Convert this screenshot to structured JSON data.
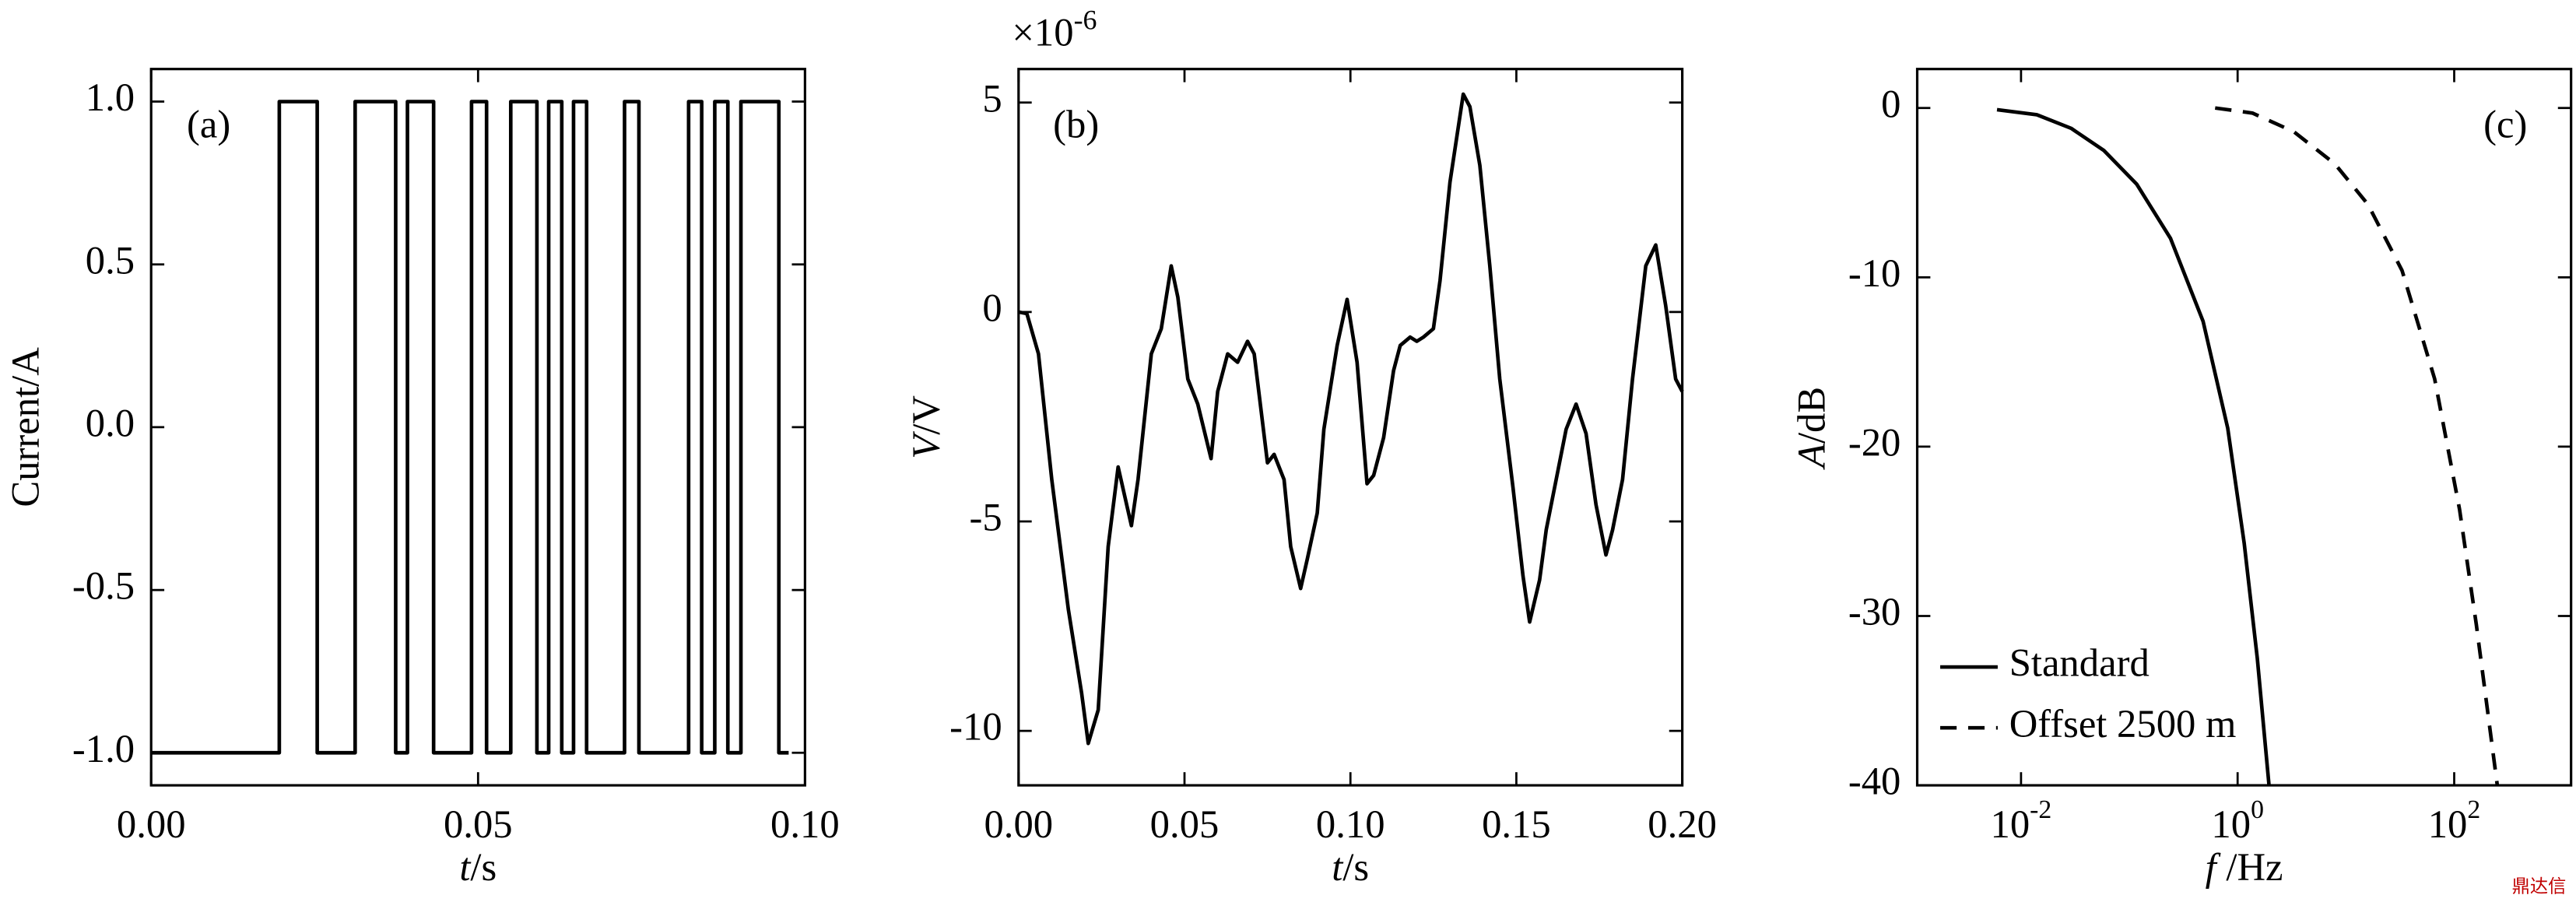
{
  "chart_data": [
    {
      "type": "line",
      "step": "post",
      "panel_label": "(a)",
      "ylabel": "Current/A",
      "xlabel": {
        "symbol": "t",
        "unit": "/s"
      },
      "color": "#000000",
      "x": [
        0,
        0.0196,
        0.0254,
        0.0312,
        0.0374,
        0.0392,
        0.0432,
        0.049,
        0.0513,
        0.055,
        0.059,
        0.0608,
        0.0628,
        0.0646,
        0.0666,
        0.0724,
        0.0746,
        0.0822,
        0.0842,
        0.0862,
        0.0882,
        0.0902,
        0.096,
        0.0975
      ],
      "values": [
        -1,
        1,
        -1,
        1,
        -1,
        1,
        -1,
        1,
        -1,
        1,
        -1,
        1,
        -1,
        1,
        -1,
        1,
        -1,
        1,
        -1,
        1,
        -1,
        1,
        -1,
        -1
      ],
      "xlim": [
        0,
        0.1
      ],
      "ylim": [
        -1.1,
        1.1
      ],
      "xticks": [
        {
          "value": 0,
          "label": "0.00"
        },
        {
          "value": 0.05,
          "label": "0.05"
        },
        {
          "value": 0.1,
          "label": "0.10"
        }
      ],
      "yticks": [
        {
          "value": -1,
          "label": "-1.0"
        },
        -0.5,
        {
          "value": 0,
          "label": "0.0"
        },
        0.5,
        {
          "value": 1,
          "label": "1.0"
        }
      ]
    },
    {
      "type": "line",
      "panel_label": "(b)",
      "multiplier": {
        "base": "×10",
        "exponent": "-6"
      },
      "ylabel": {
        "symbol": "V",
        "unit": "/V"
      },
      "xlabel": {
        "symbol": "t",
        "unit": "/s"
      },
      "color": "#000000",
      "x": [
        0,
        0.0025,
        0.006,
        0.01,
        0.015,
        0.019,
        0.021,
        0.024,
        0.027,
        0.03,
        0.034,
        0.036,
        0.04,
        0.043,
        0.046,
        0.048,
        0.051,
        0.054,
        0.058,
        0.06,
        0.063,
        0.066,
        0.069,
        0.071,
        0.075,
        0.077,
        0.08,
        0.082,
        0.085,
        0.087,
        0.09,
        0.092,
        0.096,
        0.099,
        0.102,
        0.105,
        0.107,
        0.11,
        0.113,
        0.115,
        0.118,
        0.12,
        0.122,
        0.125,
        0.127,
        0.13,
        0.134,
        0.136,
        0.139,
        0.142,
        0.145,
        0.149,
        0.152,
        0.154,
        0.157,
        0.159,
        0.162,
        0.165,
        0.168,
        0.171,
        0.174,
        0.177,
        0.179,
        0.182,
        0.185,
        0.189,
        0.192,
        0.195,
        0.198,
        0.2
      ],
      "values": [
        0,
        -0.04,
        -1.0,
        -4.0,
        -7.1,
        -9.1,
        -10.3,
        -9.5,
        -5.6,
        -3.7,
        -5.1,
        -4.0,
        -1.0,
        -0.4,
        1.1,
        0.35,
        -1.6,
        -2.2,
        -3.5,
        -1.9,
        -1.0,
        -1.2,
        -0.7,
        -1.0,
        -3.6,
        -3.4,
        -4.0,
        -5.6,
        -6.6,
        -5.9,
        -4.8,
        -2.8,
        -0.8,
        0.3,
        -1.2,
        -4.1,
        -3.9,
        -3.0,
        -1.4,
        -0.8,
        -0.6,
        -0.7,
        -0.6,
        -0.4,
        0.75,
        3.1,
        5.2,
        4.9,
        3.5,
        1.1,
        -1.6,
        -4.2,
        -6.3,
        -7.4,
        -6.4,
        -5.2,
        -4.0,
        -2.8,
        -2.2,
        -2.9,
        -4.6,
        -5.8,
        -5.2,
        -4.0,
        -1.6,
        1.1,
        1.6,
        0.15,
        -1.6,
        -1.9
      ],
      "xlim": [
        0,
        0.2
      ],
      "ylim": [
        -11.3,
        5.8
      ],
      "xticks": [
        {
          "value": 0,
          "label": "0.00"
        },
        {
          "value": 0.05,
          "label": "0.05"
        },
        {
          "value": 0.1,
          "label": "0.10"
        },
        {
          "value": 0.15,
          "label": "0.15"
        },
        {
          "value": 0.2,
          "label": "0.20"
        }
      ],
      "yticks": [
        -10,
        -5,
        0,
        5
      ]
    },
    {
      "type": "line",
      "xscale": "log",
      "panel_label": "(c)",
      "legend": "lower left",
      "ylabel": {
        "symbol": "A",
        "unit": "/dB"
      },
      "xlabel": {
        "symbol": "f",
        "unit": " /Hz"
      },
      "series": [
        {
          "name": "Standard",
          "color": "#000000",
          "dash": "solid",
          "x": [
            0.006,
            0.014,
            0.029,
            0.058,
            0.117,
            0.24,
            0.48,
            0.81,
            1.15,
            1.52,
            1.95
          ],
          "values": [
            -0.1,
            -0.4,
            -1.2,
            -2.5,
            -4.5,
            -7.7,
            -12.6,
            -18.9,
            -25.7,
            -32.5,
            -40
          ]
        },
        {
          "name": "Offset 2500 m",
          "color": "#000000",
          "dash": "dashed",
          "x": [
            0.62,
            1.37,
            3.3,
            7.9,
            16,
            33,
            66,
            112,
            160,
            250
          ],
          "values": [
            0,
            -0.3,
            -1.4,
            -3.3,
            -5.7,
            -9.6,
            -16,
            -23.7,
            -30.5,
            -40
          ]
        }
      ],
      "xlim": [
        0.0011,
        1200
      ],
      "ylim": [
        -40,
        2.3
      ],
      "xticks": [
        {
          "value": 0.01,
          "label": "10",
          "exponent": "-2"
        },
        {
          "value": 1,
          "label": "10",
          "exponent": "0"
        },
        {
          "value": 100,
          "label": "10",
          "exponent": "2"
        }
      ],
      "yticks": [
        -40,
        -30,
        -20,
        -10,
        0
      ]
    }
  ],
  "watermark": "鼎达信"
}
